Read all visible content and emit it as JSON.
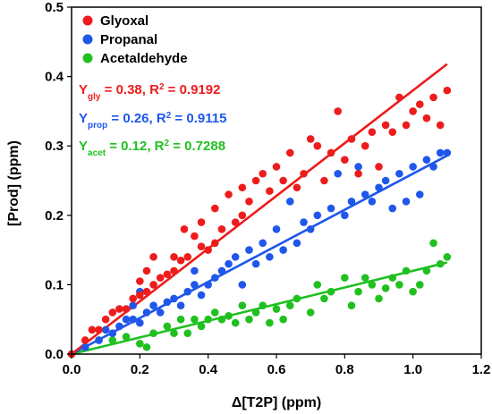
{
  "chart_data": {
    "type": "scatter",
    "xlabel": "Δ[T2P] (ppm)",
    "ylabel": "[Prod] (ppm)",
    "xlim": [
      0,
      1.2
    ],
    "ylim": [
      0,
      0.5
    ],
    "x_ticks": [
      "0.0",
      "0.2",
      "0.4",
      "0.6",
      "0.8",
      "1.0",
      "1.2"
    ],
    "y_ticks": [
      "0.0",
      "0.1",
      "0.2",
      "0.3",
      "0.4",
      "0.5"
    ],
    "x_tick_values": [
      0,
      0.2,
      0.4,
      0.6,
      0.8,
      1.0,
      1.2
    ],
    "y_tick_values": [
      0,
      0.1,
      0.2,
      0.3,
      0.4,
      0.5
    ],
    "grid": false,
    "legend_position": "top-left",
    "series": [
      {
        "name": "Glyoxal",
        "color": "#ee1c1c",
        "fit": {
          "slope": 0.38,
          "x_range": [
            0,
            1.1
          ]
        },
        "annotation": {
          "prefix": "Y",
          "sub": "gly",
          "mid": " = 0.38, R",
          "sup": "2",
          "suffix": " = 0.9192"
        },
        "points": [
          [
            0.0,
            0.0
          ],
          [
            0.04,
            0.02
          ],
          [
            0.06,
            0.035
          ],
          [
            0.08,
            0.035
          ],
          [
            0.1,
            0.05
          ],
          [
            0.12,
            0.06
          ],
          [
            0.14,
            0.065
          ],
          [
            0.16,
            0.065
          ],
          [
            0.18,
            0.08
          ],
          [
            0.2,
            0.085
          ],
          [
            0.2,
            0.105
          ],
          [
            0.22,
            0.09
          ],
          [
            0.22,
            0.12
          ],
          [
            0.24,
            0.1
          ],
          [
            0.24,
            0.14
          ],
          [
            0.26,
            0.11
          ],
          [
            0.28,
            0.115
          ],
          [
            0.3,
            0.12
          ],
          [
            0.3,
            0.14
          ],
          [
            0.32,
            0.135
          ],
          [
            0.33,
            0.18
          ],
          [
            0.34,
            0.14
          ],
          [
            0.36,
            0.17
          ],
          [
            0.38,
            0.155
          ],
          [
            0.38,
            0.19
          ],
          [
            0.4,
            0.15
          ],
          [
            0.42,
            0.16
          ],
          [
            0.42,
            0.21
          ],
          [
            0.44,
            0.18
          ],
          [
            0.46,
            0.23
          ],
          [
            0.48,
            0.19
          ],
          [
            0.5,
            0.2
          ],
          [
            0.5,
            0.24
          ],
          [
            0.52,
            0.22
          ],
          [
            0.54,
            0.25
          ],
          [
            0.56,
            0.26
          ],
          [
            0.58,
            0.235
          ],
          [
            0.6,
            0.27
          ],
          [
            0.62,
            0.25
          ],
          [
            0.64,
            0.29
          ],
          [
            0.66,
            0.24
          ],
          [
            0.68,
            0.26
          ],
          [
            0.7,
            0.31
          ],
          [
            0.72,
            0.3
          ],
          [
            0.74,
            0.25
          ],
          [
            0.76,
            0.29
          ],
          [
            0.78,
            0.35
          ],
          [
            0.8,
            0.28
          ],
          [
            0.82,
            0.31
          ],
          [
            0.84,
            0.26
          ],
          [
            0.86,
            0.3
          ],
          [
            0.88,
            0.32
          ],
          [
            0.9,
            0.27
          ],
          [
            0.92,
            0.33
          ],
          [
            0.94,
            0.32
          ],
          [
            0.96,
            0.37
          ],
          [
            0.98,
            0.33
          ],
          [
            1.0,
            0.35
          ],
          [
            1.02,
            0.36
          ],
          [
            1.04,
            0.34
          ],
          [
            1.06,
            0.37
          ],
          [
            1.08,
            0.33
          ],
          [
            1.1,
            0.38
          ]
        ]
      },
      {
        "name": "Propanal",
        "color": "#1f57ea",
        "fit": {
          "slope": 0.26,
          "x_range": [
            0,
            1.1
          ]
        },
        "annotation": {
          "prefix": "Y",
          "sub": "prop",
          "mid": " = 0.26, R",
          "sup": "2",
          "suffix": " = 0.9115"
        },
        "points": [
          [
            0.0,
            0.0
          ],
          [
            0.04,
            0.01
          ],
          [
            0.08,
            0.02
          ],
          [
            0.1,
            0.035
          ],
          [
            0.12,
            0.03
          ],
          [
            0.14,
            0.04
          ],
          [
            0.16,
            0.05
          ],
          [
            0.18,
            0.05
          ],
          [
            0.18,
            0.07
          ],
          [
            0.2,
            0.045
          ],
          [
            0.2,
            0.09
          ],
          [
            0.22,
            0.06
          ],
          [
            0.24,
            0.07
          ],
          [
            0.26,
            0.06
          ],
          [
            0.28,
            0.075
          ],
          [
            0.3,
            0.08
          ],
          [
            0.32,
            0.07
          ],
          [
            0.34,
            0.09
          ],
          [
            0.36,
            0.1
          ],
          [
            0.36,
            0.12
          ],
          [
            0.38,
            0.085
          ],
          [
            0.4,
            0.1
          ],
          [
            0.42,
            0.11
          ],
          [
            0.44,
            0.12
          ],
          [
            0.46,
            0.13
          ],
          [
            0.48,
            0.14
          ],
          [
            0.5,
            0.1
          ],
          [
            0.52,
            0.15
          ],
          [
            0.54,
            0.13
          ],
          [
            0.56,
            0.16
          ],
          [
            0.58,
            0.14
          ],
          [
            0.6,
            0.18
          ],
          [
            0.62,
            0.15
          ],
          [
            0.64,
            0.22
          ],
          [
            0.66,
            0.16
          ],
          [
            0.68,
            0.19
          ],
          [
            0.7,
            0.18
          ],
          [
            0.72,
            0.2
          ],
          [
            0.76,
            0.21
          ],
          [
            0.78,
            0.26
          ],
          [
            0.8,
            0.2
          ],
          [
            0.82,
            0.22
          ],
          [
            0.84,
            0.27
          ],
          [
            0.86,
            0.23
          ],
          [
            0.88,
            0.22
          ],
          [
            0.9,
            0.24
          ],
          [
            0.92,
            0.25
          ],
          [
            0.94,
            0.21
          ],
          [
            0.96,
            0.26
          ],
          [
            0.98,
            0.22
          ],
          [
            1.0,
            0.27
          ],
          [
            1.02,
            0.23
          ],
          [
            1.04,
            0.28
          ],
          [
            1.06,
            0.27
          ],
          [
            1.08,
            0.29
          ],
          [
            1.1,
            0.29
          ]
        ]
      },
      {
        "name": "Acetaldehyde",
        "color": "#20c020",
        "fit": {
          "slope": 0.12,
          "x_range": [
            0,
            1.1
          ]
        },
        "annotation": {
          "prefix": "Y",
          "sub": "acet",
          "mid": " = 0.12, R",
          "sup": "2",
          "suffix": " = 0.7288"
        },
        "points": [
          [
            0.0,
            0.0
          ],
          [
            0.04,
            0.01
          ],
          [
            0.08,
            0.02
          ],
          [
            0.12,
            0.02
          ],
          [
            0.16,
            0.025
          ],
          [
            0.2,
            0.015
          ],
          [
            0.22,
            0.01
          ],
          [
            0.24,
            0.03
          ],
          [
            0.28,
            0.04
          ],
          [
            0.3,
            0.03
          ],
          [
            0.32,
            0.05
          ],
          [
            0.34,
            0.03
          ],
          [
            0.36,
            0.05
          ],
          [
            0.38,
            0.04
          ],
          [
            0.4,
            0.05
          ],
          [
            0.42,
            0.06
          ],
          [
            0.44,
            0.05
          ],
          [
            0.46,
            0.055
          ],
          [
            0.48,
            0.045
          ],
          [
            0.5,
            0.07
          ],
          [
            0.52,
            0.05
          ],
          [
            0.54,
            0.06
          ],
          [
            0.56,
            0.07
          ],
          [
            0.58,
            0.045
          ],
          [
            0.6,
            0.065
          ],
          [
            0.62,
            0.05
          ],
          [
            0.64,
            0.07
          ],
          [
            0.66,
            0.08
          ],
          [
            0.7,
            0.06
          ],
          [
            0.72,
            0.1
          ],
          [
            0.74,
            0.08
          ],
          [
            0.76,
            0.09
          ],
          [
            0.8,
            0.11
          ],
          [
            0.82,
            0.07
          ],
          [
            0.84,
            0.09
          ],
          [
            0.86,
            0.11
          ],
          [
            0.88,
            0.1
          ],
          [
            0.9,
            0.08
          ],
          [
            0.92,
            0.095
          ],
          [
            0.94,
            0.11
          ],
          [
            0.96,
            0.1
          ],
          [
            0.98,
            0.12
          ],
          [
            1.0,
            0.09
          ],
          [
            1.02,
            0.1
          ],
          [
            1.04,
            0.12
          ],
          [
            1.06,
            0.16
          ],
          [
            1.08,
            0.13
          ],
          [
            1.1,
            0.14
          ]
        ]
      }
    ]
  }
}
